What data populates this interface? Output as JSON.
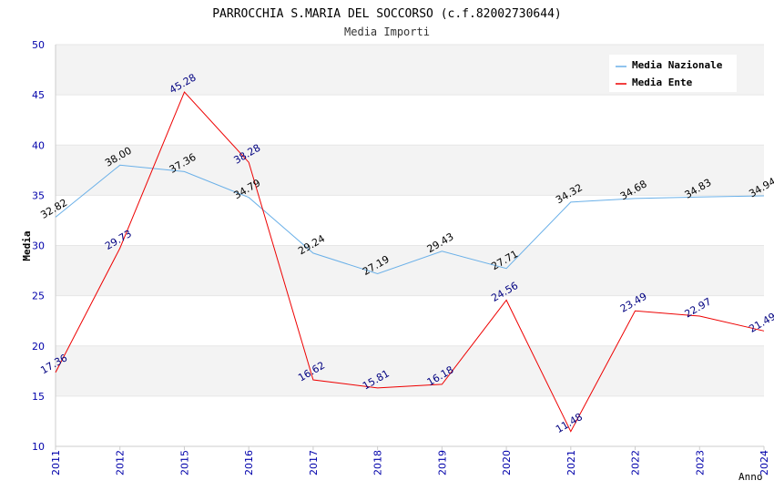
{
  "chart_data": {
    "type": "line",
    "title": "PARROCCHIA S.MARIA DEL SOCCORSO (c.f.82002730644)",
    "subtitle": "Media Importi",
    "xlabel": "Anno",
    "ylabel": "Media",
    "ylim": [
      10,
      50
    ],
    "yticks": [
      "10",
      "15",
      "20",
      "25",
      "30",
      "35",
      "40",
      "45",
      "50"
    ],
    "categories": [
      "2011",
      "2012",
      "2015",
      "2016",
      "2017",
      "2018",
      "2019",
      "2020",
      "2021",
      "2022",
      "2023",
      "2024"
    ],
    "legend_position": "top-right",
    "grid": "horizontal bands",
    "series": [
      {
        "name": "Media Nazionale",
        "color": "#6ab0e8",
        "label_color": "#000000",
        "values": [
          32.82,
          38.0,
          37.36,
          34.79,
          29.24,
          27.19,
          29.43,
          27.71,
          34.32,
          34.68,
          34.83,
          34.94
        ],
        "labels": [
          "32.82",
          "38.00",
          "37.36",
          "34.79",
          "29.24",
          "27.19",
          "29.43",
          "27.71",
          "34.32",
          "34.68",
          "34.83",
          "34.94"
        ]
      },
      {
        "name": "Media Ente",
        "color": "#ee0000",
        "label_color": "#000080",
        "values": [
          17.36,
          29.73,
          45.28,
          38.28,
          16.62,
          15.81,
          16.18,
          24.56,
          11.48,
          23.49,
          22.97,
          21.49
        ],
        "labels": [
          "17.36",
          "29.73",
          "45.28",
          "38.28",
          "16.62",
          "15.81",
          "16.18",
          "24.56",
          "11.48",
          "23.49",
          "22.97",
          "21.49"
        ]
      }
    ]
  }
}
